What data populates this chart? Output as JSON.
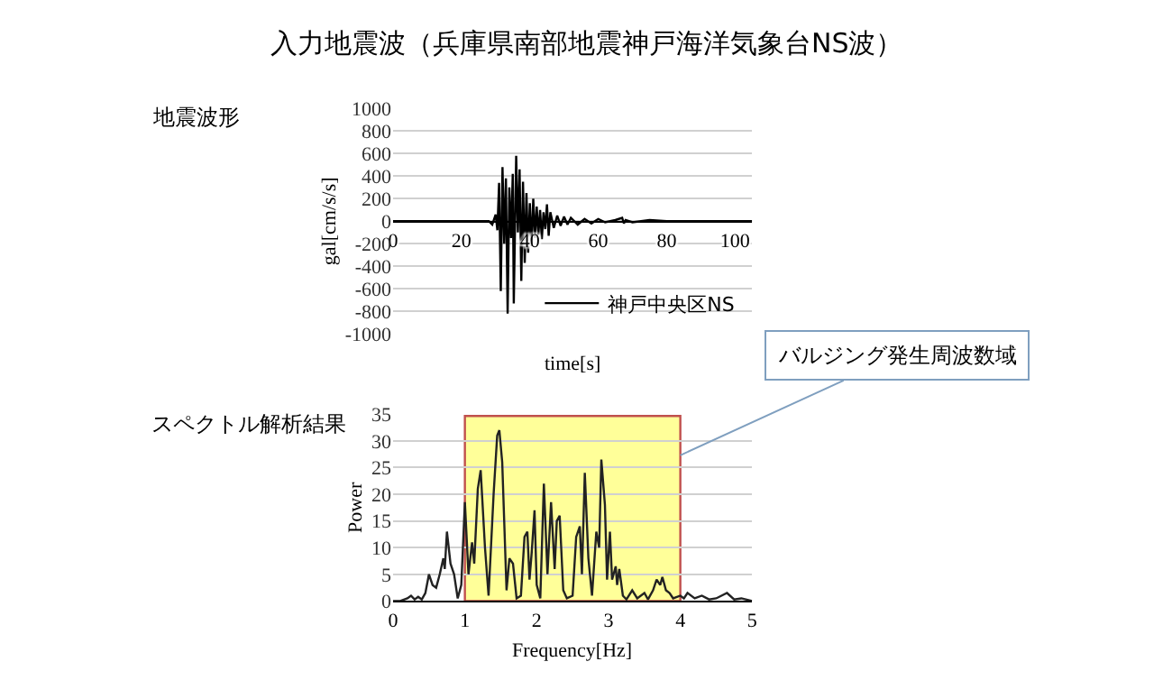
{
  "chart_data": [
    {
      "type": "line",
      "title": "入力地震波（兵庫県南部地震神戸海洋気象台NS波）",
      "subtitle": "地震波形",
      "xlabel": "time[s]",
      "ylabel": "gal[cm/s/s]",
      "xlim": [
        0,
        105
      ],
      "xticks": [
        0,
        20,
        40,
        60,
        80,
        100
      ],
      "ylim": [
        -1000,
        1000
      ],
      "yticks": [
        -1000,
        -800,
        -600,
        -400,
        -200,
        0,
        200,
        400,
        600,
        800,
        1000
      ],
      "grid": "y",
      "legend": "bottom right",
      "marker": "none",
      "line_style": "solid",
      "series": [
        {
          "name": "神戸中央区NS",
          "color": "#000000",
          "x": [
            0,
            28,
            29,
            30,
            30.5,
            31,
            31.5,
            32,
            32.5,
            33,
            33.5,
            34,
            34.5,
            35,
            35.3,
            36,
            36.5,
            37,
            37.5,
            38,
            38.5,
            39,
            39.5,
            40,
            40.5,
            41,
            41.5,
            42,
            42.5,
            43,
            43.5,
            44,
            44.5,
            45,
            45.5,
            46,
            47,
            48,
            49,
            50,
            51,
            52,
            54,
            56,
            58,
            60,
            62,
            65,
            67,
            67.5,
            68,
            70,
            75,
            80,
            90,
            105
          ],
          "values": [
            0,
            0,
            -30,
            60,
            -80,
            340,
            -620,
            480,
            -200,
            380,
            -820,
            300,
            -150,
            420,
            -730,
            580,
            -100,
            460,
            -530,
            350,
            -370,
            250,
            -280,
            160,
            -220,
            200,
            -150,
            130,
            -120,
            100,
            -160,
            80,
            -70,
            150,
            -130,
            80,
            -60,
            50,
            -40,
            40,
            -30,
            30,
            -30,
            20,
            -20,
            20,
            -10,
            10,
            30,
            -20,
            10,
            -10,
            10,
            0,
            0,
            0
          ]
        }
      ]
    },
    {
      "type": "line",
      "subtitle": "スペクトル解析結果",
      "xlabel": "Frequency[Hz]",
      "ylabel": "Power",
      "xlim": [
        0,
        5
      ],
      "xticks": [
        0,
        1,
        2,
        3,
        4,
        5
      ],
      "ylim": [
        0,
        35
      ],
      "yticks": [
        0,
        5,
        10,
        15,
        20,
        25,
        30,
        35
      ],
      "grid": "y",
      "legend": false,
      "marker": "none",
      "line_style": "solid",
      "bands": [
        {
          "axis": "x",
          "from": 1,
          "to": 4,
          "label": "バルジング発生周波数域",
          "color": "#ffff99"
        }
      ],
      "series": [
        {
          "color": "#222222",
          "x": [
            0,
            0.1,
            0.2,
            0.25,
            0.3,
            0.35,
            0.4,
            0.45,
            0.5,
            0.55,
            0.6,
            0.65,
            0.7,
            0.72,
            0.75,
            0.8,
            0.85,
            0.9,
            0.95,
            1.0,
            1.05,
            1.1,
            1.13,
            1.18,
            1.22,
            1.28,
            1.33,
            1.4,
            1.45,
            1.48,
            1.52,
            1.58,
            1.62,
            1.67,
            1.72,
            1.78,
            1.83,
            1.87,
            1.9,
            1.93,
            1.97,
            2.0,
            2.05,
            2.1,
            2.15,
            2.2,
            2.25,
            2.28,
            2.32,
            2.37,
            2.42,
            2.5,
            2.55,
            2.6,
            2.63,
            2.67,
            2.72,
            2.77,
            2.83,
            2.87,
            2.9,
            2.95,
            2.98,
            3.02,
            3.05,
            3.1,
            3.12,
            3.15,
            3.2,
            3.25,
            3.33,
            3.4,
            3.5,
            3.55,
            3.62,
            3.67,
            3.72,
            3.75,
            3.8,
            3.85,
            3.9,
            4.0,
            4.05,
            4.1,
            4.2,
            4.3,
            4.4,
            4.5,
            4.65,
            4.75,
            4.85,
            5
          ],
          "values": [
            0,
            0,
            0.5,
            1,
            0.3,
            0.8,
            0.3,
            1.5,
            5,
            3,
            2.5,
            5,
            8,
            6,
            13,
            7,
            5,
            0.5,
            3,
            18.5,
            5,
            11,
            7,
            21,
            24.5,
            10,
            1,
            20,
            31,
            32,
            26,
            2,
            8,
            7,
            0.5,
            1,
            12,
            13,
            4,
            9,
            17,
            3,
            0.5,
            22,
            5,
            18.5,
            6,
            15,
            16,
            2,
            0.5,
            1,
            12,
            14,
            5,
            24,
            8,
            1,
            13,
            10,
            26.5,
            18,
            4,
            13,
            4,
            6.5,
            3,
            6,
            1,
            0.3,
            2,
            0.5,
            1.5,
            0.3,
            2,
            4,
            3,
            4.5,
            2,
            1.5,
            0.5,
            1,
            0.5,
            1.5,
            0.5,
            1,
            0.3,
            0.5,
            1.5,
            0.3,
            0.5,
            0
          ]
        }
      ]
    }
  ]
}
